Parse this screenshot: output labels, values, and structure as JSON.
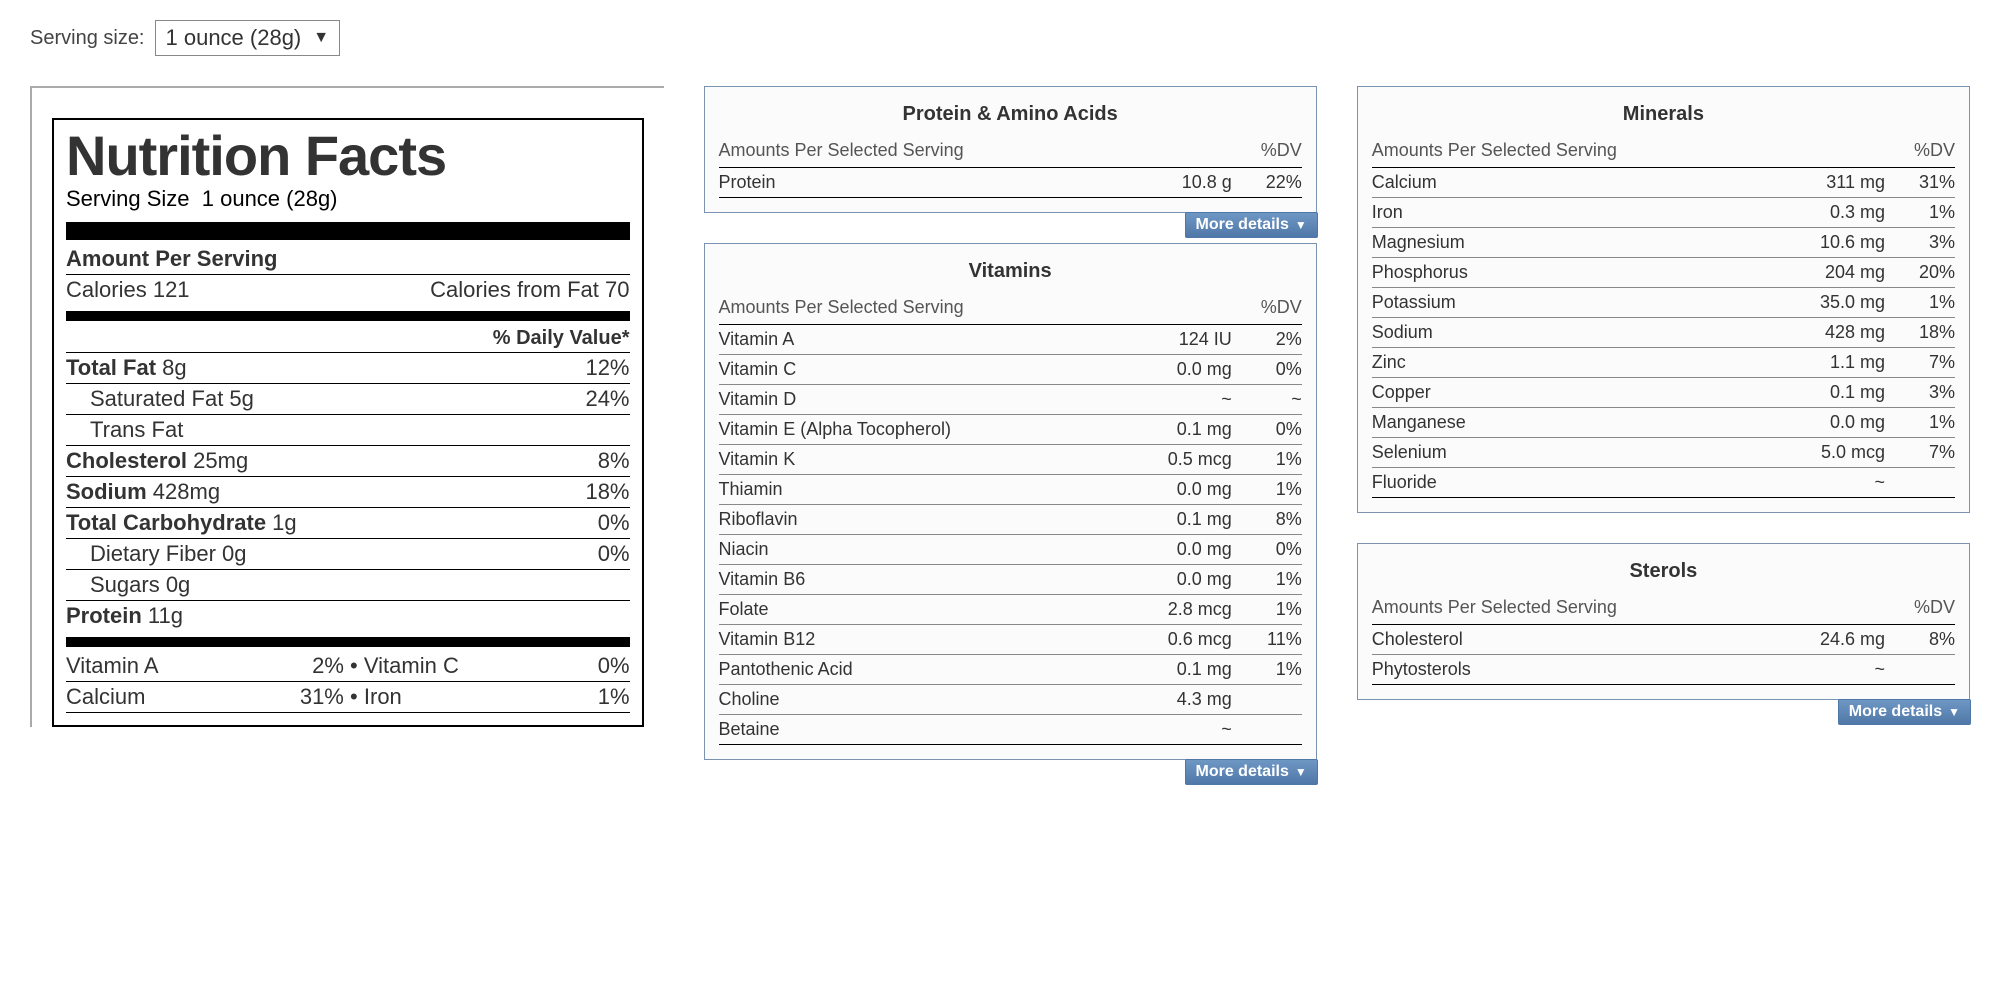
{
  "serving": {
    "label": "Serving size:",
    "selected": "1 ounce (28g)"
  },
  "nf": {
    "title": "Nutrition Facts",
    "serving_line_label": "Serving Size",
    "serving_line_value": "1 ounce (28g)",
    "amount_per_serving": "Amount Per Serving",
    "calories_label": "Calories",
    "calories_value": "121",
    "calories_from_fat_label": "Calories from Fat",
    "calories_from_fat_value": "70",
    "dv_heading": "% Daily Value*",
    "rows": [
      {
        "name": "Total Fat",
        "amount": "8g",
        "dv": "12%",
        "bold": true
      },
      {
        "name": "Saturated Fat",
        "amount": "5g",
        "dv": "24%",
        "indent": true
      },
      {
        "name": "Trans Fat",
        "amount": "",
        "dv": "",
        "indent": true
      },
      {
        "name": "Cholesterol",
        "amount": "25mg",
        "dv": "8%",
        "bold": true
      },
      {
        "name": "Sodium",
        "amount": "428mg",
        "dv": "18%",
        "bold": true
      },
      {
        "name": "Total Carbohydrate",
        "amount": "1g",
        "dv": "0%",
        "bold": true
      },
      {
        "name": "Dietary Fiber",
        "amount": "0g",
        "dv": "0%",
        "indent": true
      },
      {
        "name": "Sugars",
        "amount": "0g",
        "dv": "",
        "indent": true
      },
      {
        "name": "Protein",
        "amount": "11g",
        "dv": "",
        "bold": true
      }
    ],
    "grid": [
      {
        "l1": "Vitamin A",
        "v1": "2%",
        "l2": "Vitamin C",
        "v2": "0%"
      },
      {
        "l1": "Calcium",
        "v1": "31%",
        "l2": "Iron",
        "v2": "1%"
      }
    ]
  },
  "panels": {
    "col2": [
      {
        "title": "Protein & Amino Acids",
        "header_left": "Amounts Per Selected Serving",
        "header_right": "%DV",
        "rows": [
          {
            "name": "Protein",
            "amount": "10.8 g",
            "dv": "22%"
          }
        ],
        "more": "More details"
      },
      {
        "title": "Vitamins",
        "header_left": "Amounts Per Selected Serving",
        "header_right": "%DV",
        "rows": [
          {
            "name": "Vitamin A",
            "amount": "124 IU",
            "dv": "2%"
          },
          {
            "name": "Vitamin C",
            "amount": "0.0 mg",
            "dv": "0%"
          },
          {
            "name": "Vitamin D",
            "amount": "~",
            "dv": "~"
          },
          {
            "name": "Vitamin E (Alpha Tocopherol)",
            "amount": "0.1 mg",
            "dv": "0%"
          },
          {
            "name": "Vitamin K",
            "amount": "0.5 mcg",
            "dv": "1%"
          },
          {
            "name": "Thiamin",
            "amount": "0.0 mg",
            "dv": "1%"
          },
          {
            "name": "Riboflavin",
            "amount": "0.1 mg",
            "dv": "8%"
          },
          {
            "name": "Niacin",
            "amount": "0.0 mg",
            "dv": "0%"
          },
          {
            "name": "Vitamin B6",
            "amount": "0.0 mg",
            "dv": "1%"
          },
          {
            "name": "Folate",
            "amount": "2.8 mcg",
            "dv": "1%"
          },
          {
            "name": "Vitamin B12",
            "amount": "0.6 mcg",
            "dv": "11%"
          },
          {
            "name": "Pantothenic Acid",
            "amount": "0.1 mg",
            "dv": "1%"
          },
          {
            "name": "Choline",
            "amount": "4.3 mg",
            "dv": ""
          },
          {
            "name": "Betaine",
            "amount": "~",
            "dv": ""
          }
        ],
        "more": "More details"
      }
    ],
    "col3": [
      {
        "title": "Minerals",
        "header_left": "Amounts Per Selected Serving",
        "header_right": "%DV",
        "rows": [
          {
            "name": "Calcium",
            "amount": "311 mg",
            "dv": "31%"
          },
          {
            "name": "Iron",
            "amount": "0.3 mg",
            "dv": "1%"
          },
          {
            "name": "Magnesium",
            "amount": "10.6 mg",
            "dv": "3%"
          },
          {
            "name": "Phosphorus",
            "amount": "204 mg",
            "dv": "20%"
          },
          {
            "name": "Potassium",
            "amount": "35.0 mg",
            "dv": "1%"
          },
          {
            "name": "Sodium",
            "amount": "428 mg",
            "dv": "18%"
          },
          {
            "name": "Zinc",
            "amount": "1.1 mg",
            "dv": "7%"
          },
          {
            "name": "Copper",
            "amount": "0.1 mg",
            "dv": "3%"
          },
          {
            "name": "Manganese",
            "amount": "0.0 mg",
            "dv": "1%"
          },
          {
            "name": "Selenium",
            "amount": "5.0 mcg",
            "dv": "7%"
          },
          {
            "name": "Fluoride",
            "amount": "~",
            "dv": ""
          }
        ]
      },
      {
        "title": "Sterols",
        "header_left": "Amounts Per Selected Serving",
        "header_right": "%DV",
        "rows": [
          {
            "name": "Cholesterol",
            "amount": "24.6 mg",
            "dv": "8%"
          },
          {
            "name": "Phytosterols",
            "amount": "~",
            "dv": ""
          }
        ],
        "more": "More details"
      }
    ]
  },
  "style": {
    "panel_border": "#7a94b0",
    "more_btn_bg_top": "#6f97c4",
    "more_btn_bg_bottom": "#4f78a8",
    "text_color": "#333333",
    "row_border": "#888888"
  }
}
